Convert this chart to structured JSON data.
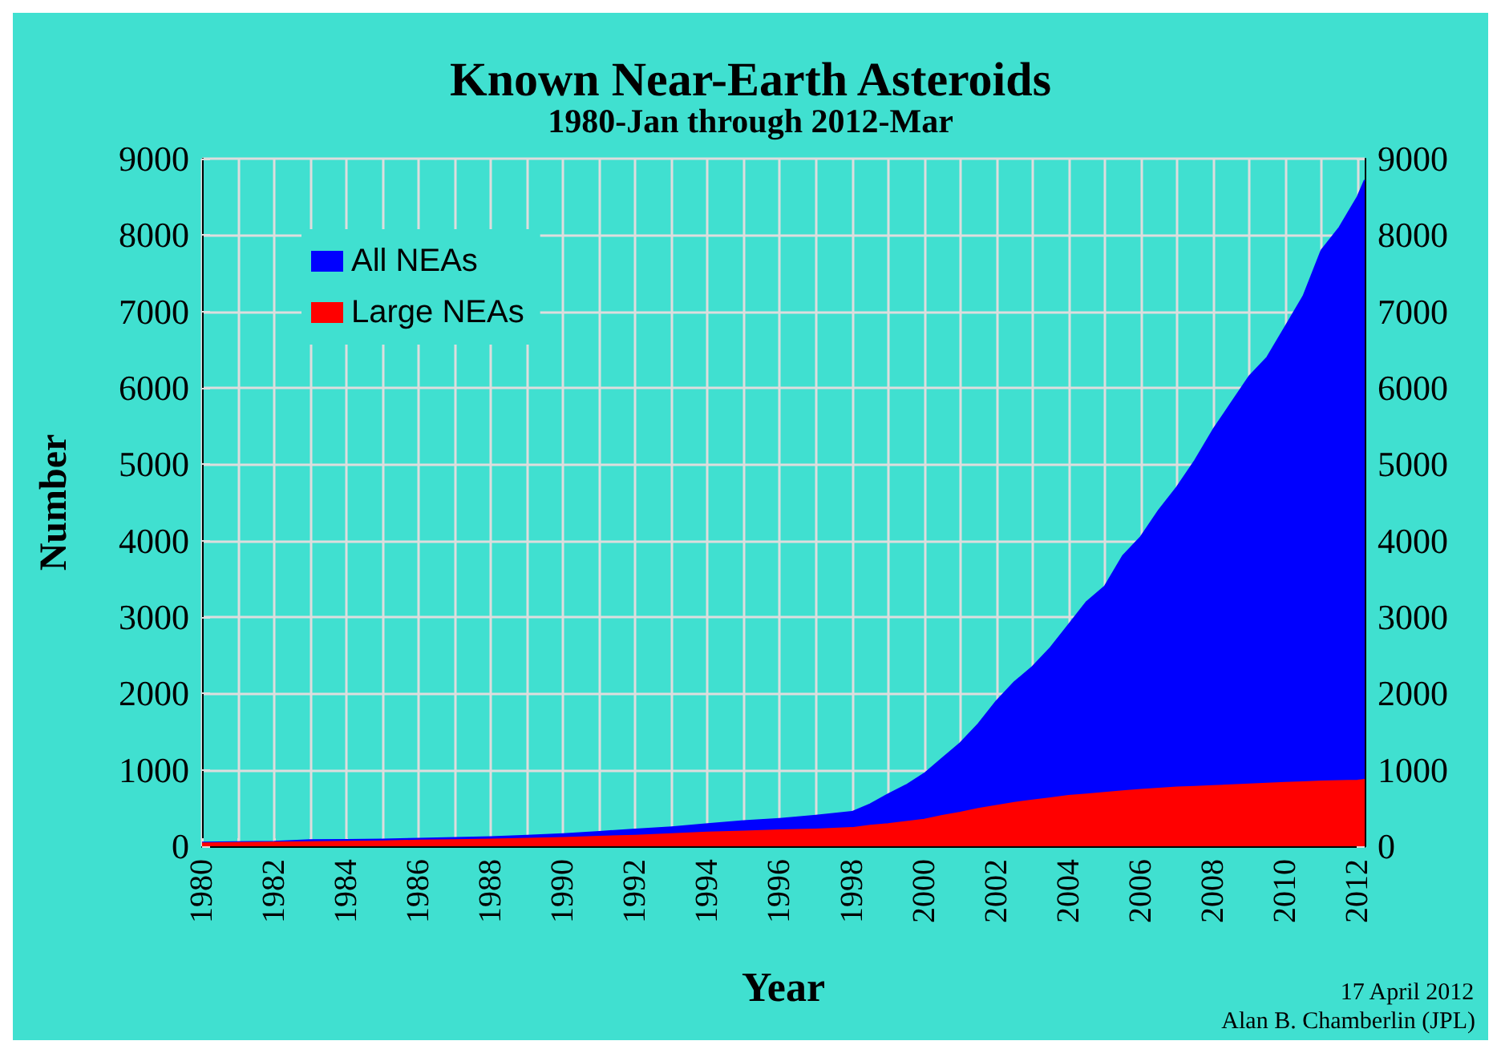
{
  "chart_data": {
    "type": "area",
    "title": "Known Near-Earth Asteroids",
    "subtitle": "1980-Jan through 2012-Mar",
    "xlabel": "Year",
    "ylabel": "Number",
    "x": [
      1980,
      1981,
      1982,
      1983,
      1984,
      1985,
      1986,
      1987,
      1988,
      1989,
      1990,
      1991,
      1992,
      1993,
      1994,
      1995,
      1996,
      1997,
      1998,
      1998.5,
      1999,
      1999.5,
      2000,
      2000.5,
      2001,
      2001.5,
      2002,
      2002.5,
      2003,
      2003.5,
      2004,
      2004.5,
      2005,
      2005.5,
      2006,
      2006.5,
      2007,
      2007.5,
      2008,
      2008.5,
      2009,
      2009.5,
      2010,
      2010.5,
      2011,
      2011.5,
      2012,
      2012.2
    ],
    "series": [
      {
        "name": "All NEAs",
        "color": "#0000ff",
        "values": [
          50,
          55,
          60,
          80,
          85,
          90,
          100,
          110,
          120,
          140,
          160,
          190,
          220,
          250,
          290,
          330,
          360,
          400,
          450,
          550,
          680,
          800,
          950,
          1150,
          1350,
          1600,
          1900,
          2150,
          2350,
          2600,
          2900,
          3200,
          3400,
          3800,
          4050,
          4400,
          4700,
          5050,
          5450,
          5800,
          6150,
          6400,
          6800,
          7200,
          7800,
          8100,
          8500,
          8720
        ]
      },
      {
        "name": "Large NEAs",
        "color": "#ff0000",
        "values": [
          40,
          45,
          50,
          55,
          60,
          65,
          75,
          80,
          90,
          100,
          110,
          125,
          140,
          160,
          180,
          195,
          210,
          220,
          240,
          270,
          290,
          320,
          350,
          400,
          440,
          490,
          530,
          570,
          600,
          630,
          660,
          680,
          700,
          720,
          740,
          755,
          770,
          780,
          790,
          800,
          810,
          820,
          830,
          840,
          850,
          855,
          860,
          870
        ]
      }
    ],
    "xlim": [
      1980,
      2012.2
    ],
    "xticks": [
      1980,
      {
        "value": 1981,
        "label": null
      },
      1982,
      {
        "value": 1983,
        "label": null
      },
      1984,
      {
        "value": 1985,
        "label": null
      },
      1986,
      {
        "value": 1987,
        "label": null
      },
      1988,
      {
        "value": 1989,
        "label": null
      },
      1990,
      {
        "value": 1991,
        "label": null
      },
      1992,
      {
        "value": 1993,
        "label": null
      },
      1994,
      {
        "value": 1995,
        "label": null
      },
      1996,
      {
        "value": 1997,
        "label": null
      },
      1998,
      {
        "value": 1999,
        "label": null
      },
      2000,
      {
        "value": 2001,
        "label": null
      },
      2002,
      {
        "value": 2003,
        "label": null
      },
      2004,
      {
        "value": 2005,
        "label": null
      },
      2006,
      {
        "value": 2007,
        "label": null
      },
      2008,
      {
        "value": 2009,
        "label": null
      },
      2010,
      {
        "value": 2011,
        "label": null
      },
      2012
    ],
    "ylim": [
      0,
      9000
    ],
    "yticks": [
      0,
      1000,
      2000,
      3000,
      4000,
      5000,
      6000,
      7000,
      8000,
      9000
    ],
    "y2lim": [
      0,
      9000
    ],
    "y2ticks": [
      0,
      1000,
      2000,
      3000,
      4000,
      5000,
      6000,
      7000,
      8000,
      9000
    ],
    "grid": true,
    "legend": "top left",
    "annotations": [
      "17 April 2012",
      "Alan B. Chamberlin (JPL)"
    ]
  }
}
